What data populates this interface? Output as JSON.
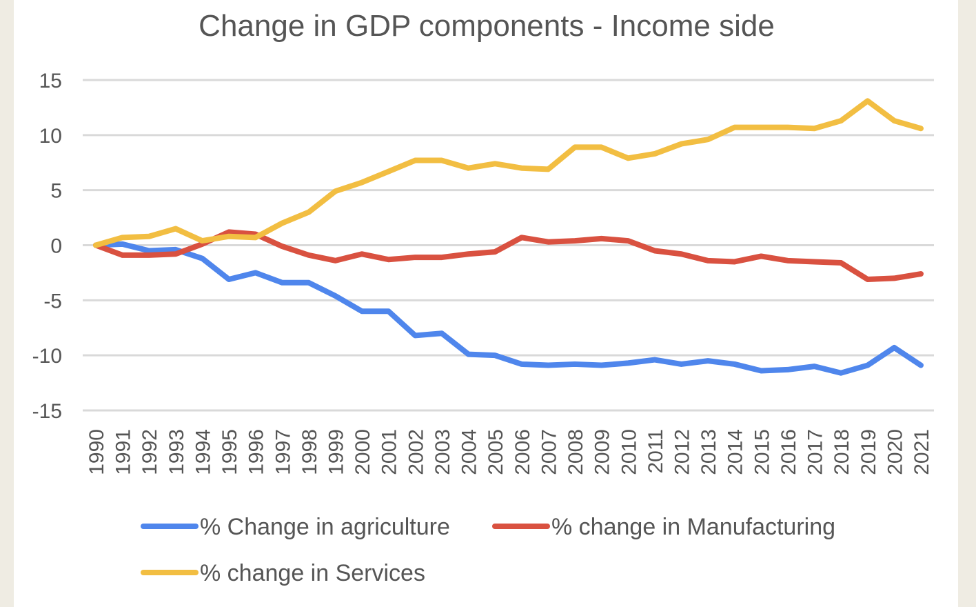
{
  "chart_data": {
    "type": "line",
    "title": "Change in GDP components - Income side",
    "xlabel": "",
    "ylabel": "",
    "ylim": [
      -15,
      15
    ],
    "yticks": [
      15,
      10,
      5,
      0,
      -5,
      -10,
      -15
    ],
    "grid": true,
    "legend_position": "bottom",
    "x": [
      "1990",
      "1991",
      "1992",
      "1993",
      "1994",
      "1995",
      "1996",
      "1997",
      "1998",
      "1999",
      "2000",
      "2001",
      "2002",
      "2003",
      "2004",
      "2005",
      "2006",
      "2007",
      "2008",
      "2009",
      "2010",
      "2011",
      "2012",
      "2013",
      "2014",
      "2015",
      "2016",
      "2017",
      "2018",
      "2019",
      "2020",
      "2021"
    ],
    "series": [
      {
        "name": "% Change in agriculture",
        "color": "#4f86ec",
        "values": [
          0,
          0.1,
          -0.5,
          -0.4,
          -1.2,
          -3.1,
          -2.5,
          -3.4,
          -3.4,
          -4.6,
          -6.0,
          -6.0,
          -8.2,
          -8.0,
          -9.9,
          -10.0,
          -10.8,
          -10.9,
          -10.8,
          -10.9,
          -10.7,
          -10.4,
          -10.8,
          -10.5,
          -10.8,
          -11.4,
          -11.3,
          -11.0,
          -11.6,
          -10.9,
          -9.3,
          -10.9
        ]
      },
      {
        "name": "% change in Manufacturing",
        "color": "#d95140",
        "values": [
          0,
          -0.9,
          -0.9,
          -0.8,
          0.1,
          1.2,
          1.0,
          -0.1,
          -0.9,
          -1.4,
          -0.8,
          -1.3,
          -1.1,
          -1.1,
          -0.8,
          -0.6,
          0.7,
          0.3,
          0.4,
          0.6,
          0.4,
          -0.5,
          -0.8,
          -1.4,
          -1.5,
          -1.0,
          -1.4,
          -1.5,
          -1.6,
          -3.1,
          -3.0,
          -2.6
        ]
      },
      {
        "name": "% change in Services",
        "color": "#f2be42",
        "values": [
          0,
          0.7,
          0.8,
          1.5,
          0.4,
          0.8,
          0.7,
          2.0,
          3.0,
          4.9,
          5.7,
          6.7,
          7.7,
          7.7,
          7.0,
          7.4,
          7.0,
          6.9,
          8.9,
          8.9,
          7.9,
          8.3,
          9.2,
          9.6,
          10.7,
          10.7,
          10.7,
          10.6,
          11.3,
          13.1,
          11.3,
          10.6
        ]
      }
    ]
  }
}
